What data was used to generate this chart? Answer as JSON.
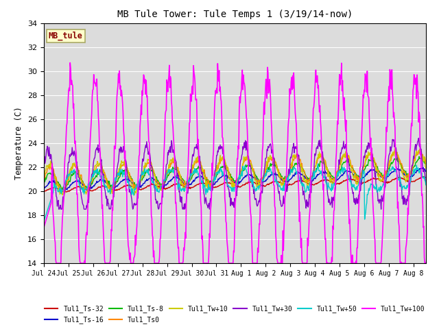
{
  "title": "MB Tule Tower: Tule Temps 1 (3/19/14-now)",
  "ylabel": "Temperature (C)",
  "ylim": [
    14,
    34
  ],
  "yticks": [
    14,
    16,
    18,
    20,
    22,
    24,
    26,
    28,
    30,
    32,
    34
  ],
  "bg_color": "#dcdcdc",
  "legend_box_label": "MB_tule",
  "legend_box_color": "#ffffcc",
  "legend_box_border": "#aaaa66",
  "legend_box_text_color": "#880000",
  "series": [
    {
      "label": "Tul1_Ts-32",
      "color": "#cc0000",
      "linewidth": 1.0
    },
    {
      "label": "Tul1_Ts-16",
      "color": "#0000cc",
      "linewidth": 1.0
    },
    {
      "label": "Tul1_Ts-8",
      "color": "#00bb00",
      "linewidth": 1.0
    },
    {
      "label": "Tul1_Ts0",
      "color": "#ff8800",
      "linewidth": 1.0
    },
    {
      "label": "Tul1_Tw+10",
      "color": "#cccc00",
      "linewidth": 1.0
    },
    {
      "label": "Tul1_Tw+30",
      "color": "#8800cc",
      "linewidth": 1.0
    },
    {
      "label": "Tul1_Tw+50",
      "color": "#00cccc",
      "linewidth": 1.0
    },
    {
      "label": "Tul1_Tw+100",
      "color": "#ff00ff",
      "linewidth": 1.2
    }
  ],
  "x_tick_labels": [
    "Jul 24",
    "Jul 25",
    "Jul 26",
    "Jul 27",
    "Jul 28",
    "Jul 29",
    "Jul 30",
    "Jul 31",
    "Aug 1",
    "Aug 2",
    "Aug 3",
    "Aug 4",
    "Aug 5",
    "Aug 6",
    "Aug 7",
    "Aug 8"
  ],
  "n_days": 15.5,
  "n_points": 744
}
